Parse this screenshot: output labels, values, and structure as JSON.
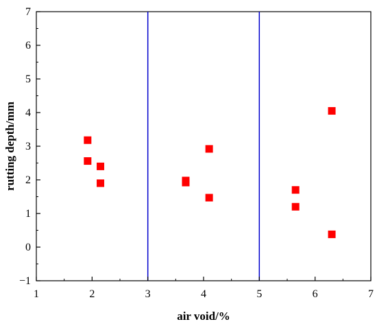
{
  "chart_data": {
    "type": "scatter",
    "title": "",
    "xlabel": "air void/%",
    "ylabel": "rutting depth/mm",
    "xlim": [
      1,
      7
    ],
    "ylim": [
      -1,
      7
    ],
    "xticks": [
      1,
      2,
      3,
      4,
      5,
      6,
      7
    ],
    "yticks": [
      -1,
      0,
      1,
      2,
      3,
      4,
      5,
      6,
      7
    ],
    "xtick_labels": [
      "1",
      "2",
      "3",
      "4",
      "5",
      "6",
      "7"
    ],
    "ytick_labels": [
      "−1",
      "0",
      "1",
      "2",
      "3",
      "4",
      "5",
      "6",
      "7"
    ],
    "grid": false,
    "legend": "none",
    "marker_color": "#ff0000",
    "reference_line_color": "#0000cc",
    "reference_lines_x": [
      3,
      5
    ],
    "points": [
      {
        "x": 1.92,
        "y": 3.18
      },
      {
        "x": 1.92,
        "y": 2.56
      },
      {
        "x": 2.15,
        "y": 2.4
      },
      {
        "x": 2.15,
        "y": 1.9
      },
      {
        "x": 3.68,
        "y": 1.98
      },
      {
        "x": 3.68,
        "y": 1.92
      },
      {
        "x": 4.1,
        "y": 2.92
      },
      {
        "x": 4.1,
        "y": 1.47
      },
      {
        "x": 5.65,
        "y": 1.7
      },
      {
        "x": 5.65,
        "y": 1.2
      },
      {
        "x": 6.3,
        "y": 4.05
      },
      {
        "x": 6.3,
        "y": 0.38
      }
    ]
  }
}
